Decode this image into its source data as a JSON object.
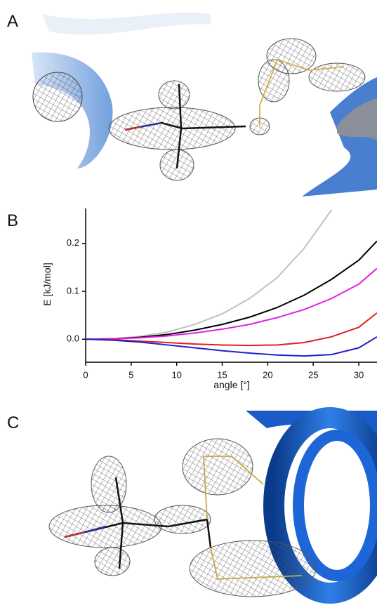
{
  "panels": {
    "a": "A",
    "b": "B",
    "c": "C"
  },
  "chart_data": {
    "type": "line",
    "xlabel": "angle [°]",
    "ylabel": "E [kJ/mol]",
    "x": [
      0,
      3,
      6,
      9,
      12,
      15,
      18,
      21,
      24,
      27,
      30,
      32
    ],
    "xlim": [
      0,
      32
    ],
    "xticks": [
      0,
      5,
      10,
      15,
      20,
      25,
      30
    ],
    "ylim": [
      -0.048,
      0.273
    ],
    "yticks": [
      {
        "value": 0,
        "label": "0.0"
      },
      0.1,
      0.2
    ],
    "series": [
      {
        "color": "#c0c0c0",
        "values": [
          0,
          0.001,
          0.006,
          0.015,
          0.031,
          0.053,
          0.085,
          0.128,
          0.19,
          0.27,
          null,
          null
        ]
      },
      {
        "color": "#000000",
        "values": [
          0,
          0.001,
          0.004,
          0.01,
          0.019,
          0.031,
          0.046,
          0.066,
          0.092,
          0.125,
          0.165,
          0.205
        ]
      },
      {
        "color": "#e020e0",
        "values": [
          0,
          0.001,
          0.003,
          0.007,
          0.013,
          0.021,
          0.031,
          0.045,
          0.062,
          0.085,
          0.115,
          0.148
        ]
      },
      {
        "color": "#e02020",
        "values": [
          0,
          -0.001,
          -0.004,
          -0.007,
          -0.01,
          -0.012,
          -0.013,
          -0.012,
          -0.007,
          0.005,
          0.025,
          0.055
        ]
      },
      {
        "color": "#2020d0",
        "values": [
          0,
          -0.002,
          -0.006,
          -0.012,
          -0.018,
          -0.024,
          -0.029,
          -0.033,
          -0.035,
          -0.032,
          -0.018,
          0.005
        ]
      }
    ]
  }
}
